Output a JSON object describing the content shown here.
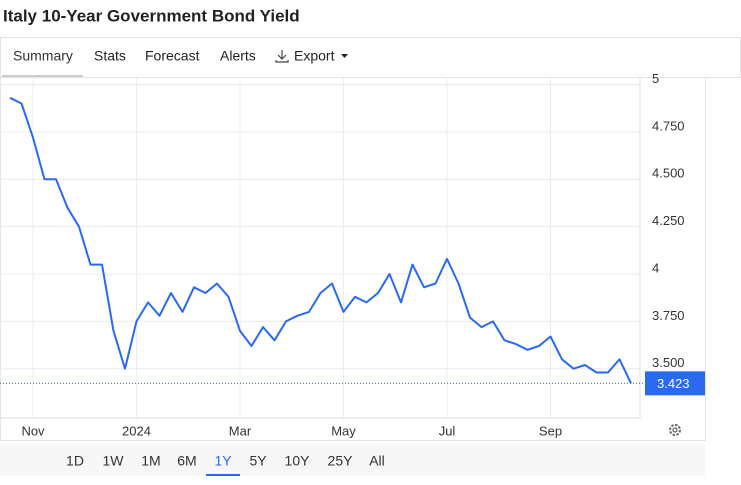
{
  "ui": {
    "tabs": [
      "Summary",
      "Stats",
      "Forecast",
      "Alerts",
      "Export"
    ],
    "ranges": [
      "1D",
      "1W",
      "1M",
      "6M",
      "1Y",
      "5Y",
      "10Y",
      "25Y",
      "All"
    ],
    "active_range": "1Y"
  },
  "chart_data": {
    "type": "line",
    "title": "Italy 10-Year Government Bond Yield",
    "categories": [
      null,
      null,
      "Nov",
      null,
      null,
      null,
      null,
      null,
      null,
      null,
      null,
      "2024",
      null,
      null,
      null,
      null,
      null,
      null,
      null,
      null,
      "Mar",
      null,
      null,
      null,
      null,
      null,
      null,
      null,
      null,
      "May",
      null,
      null,
      null,
      null,
      null,
      null,
      null,
      null,
      "Jul",
      null,
      null,
      null,
      null,
      null,
      null,
      null,
      null,
      "Sep",
      null,
      null,
      null,
      null,
      null,
      null,
      null
    ],
    "series": [
      {
        "name": "Italy 10Y",
        "color": "#2a6af0",
        "values": [
          4.93,
          4.9,
          4.72,
          4.5,
          4.5,
          4.35,
          4.25,
          4.05,
          4.05,
          3.7,
          3.5,
          3.75,
          3.85,
          3.78,
          3.9,
          3.8,
          3.93,
          3.9,
          3.95,
          3.88,
          3.7,
          3.62,
          3.72,
          3.65,
          3.75,
          3.78,
          3.8,
          3.9,
          3.95,
          3.8,
          3.88,
          3.85,
          3.9,
          4.0,
          3.85,
          4.05,
          3.93,
          3.95,
          4.08,
          3.95,
          3.77,
          3.72,
          3.75,
          3.65,
          3.63,
          3.6,
          3.62,
          3.67,
          3.55,
          3.5,
          3.52,
          3.48,
          3.48,
          3.55,
          3.423
        ]
      }
    ],
    "ylim": [
      3.24,
      5.04
    ],
    "yticks": [
      {
        "value": 3.5,
        "label": "3.500"
      },
      {
        "value": 3.75,
        "label": "3.750"
      },
      4,
      {
        "value": 4.25,
        "label": "4.250"
      },
      {
        "value": 4.5,
        "label": "4.500"
      },
      {
        "value": 4.75,
        "label": "4.750"
      },
      5
    ],
    "grid": true
  }
}
